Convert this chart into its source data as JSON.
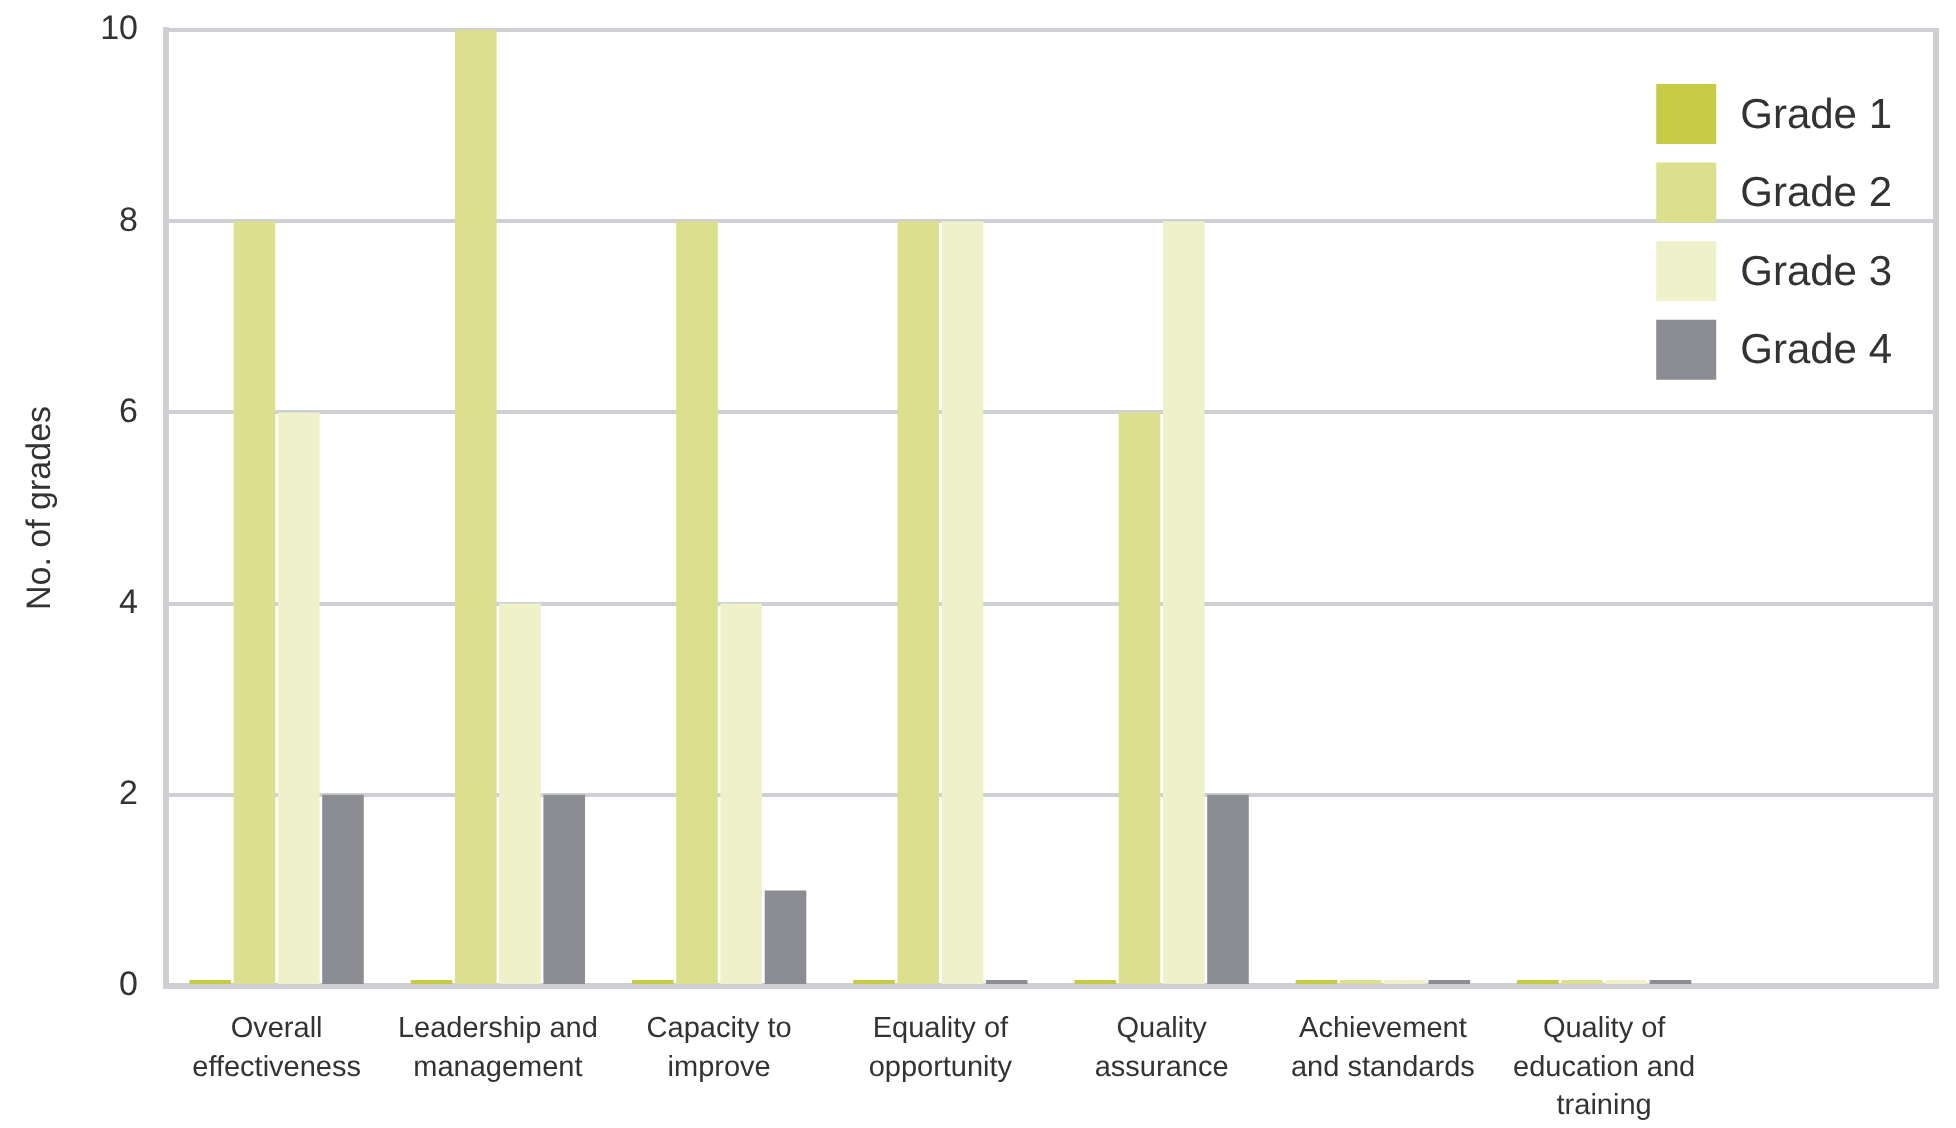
{
  "chart_data": {
    "type": "bar",
    "ylabel": "No. of grades",
    "categories": [
      "Overall effectiveness",
      "Leadership and management",
      "Capacity to improve",
      "Equality of opportunity",
      "Quality assurance",
      "Achievement and standards",
      "Quality of education and training",
      null
    ],
    "series": [
      {
        "name": "Grade 1",
        "color": "#c6cb45",
        "values": [
          0,
          0,
          0,
          0,
          0,
          0,
          0,
          null
        ]
      },
      {
        "name": "Grade 2",
        "color": "#dce08e",
        "values": [
          8,
          10,
          8,
          8,
          6,
          0,
          0,
          null
        ]
      },
      {
        "name": "Grade 3",
        "color": "#eef1c9",
        "values": [
          6,
          4,
          4,
          8,
          8,
          0,
          0,
          null
        ]
      },
      {
        "name": "Grade 4",
        "color": "#8b8d92",
        "values": [
          2,
          2,
          1,
          0,
          2,
          0,
          0,
          null
        ]
      }
    ],
    "ylim": [
      0,
      10
    ],
    "yticks": [
      0,
      2,
      4,
      6,
      8,
      10
    ],
    "grid": "y",
    "legend": "top right"
  }
}
